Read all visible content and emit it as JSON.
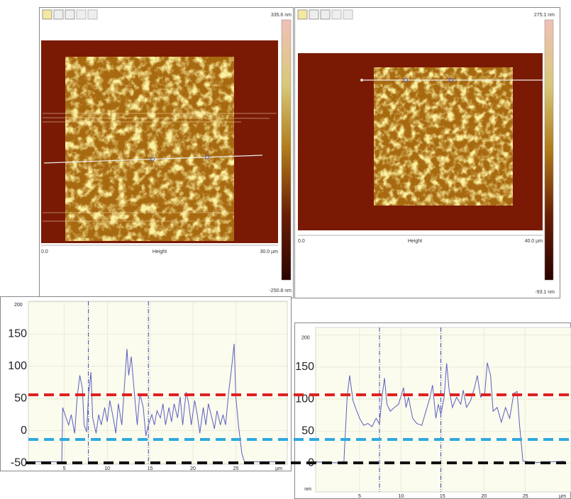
{
  "images": [
    {
      "max_label": "335.6 nm",
      "min_label": "-250.8 nm",
      "x_start": "0.0",
      "x_label": "Height",
      "x_end": "30.0 µm"
    },
    {
      "max_label": "275.1 nm",
      "min_label": "-93.1 nm",
      "x_start": "0.0",
      "x_label": "Height",
      "x_end": "40.0 µm"
    }
  ],
  "chart_data": [
    {
      "type": "line",
      "color": "#5b5fbf",
      "cursor_color": "#3a4ab0",
      "grid": true,
      "xlim": [
        0.8,
        31
      ],
      "xticks": [
        5,
        10,
        15,
        20,
        25
      ],
      "xlabel": "µm",
      "ylim": [
        -52,
        201
      ],
      "yticks": [
        -50,
        0,
        50,
        100,
        150,
        200
      ],
      "cursors": [
        7.8,
        14.8
      ],
      "x": [
        0.8,
        4.7,
        4.8,
        5.2,
        5.5,
        5.8,
        6.2,
        6.5,
        6.8,
        7.1,
        7.3,
        7.6,
        7.8,
        8.1,
        8.3,
        8.7,
        9.0,
        9.3,
        9.7,
        10.0,
        10.3,
        10.7,
        11.0,
        11.3,
        11.7,
        12.0,
        12.3,
        12.5,
        12.8,
        13.2,
        13.5,
        13.8,
        14.2,
        14.5,
        14.8,
        15.2,
        15.5,
        15.8,
        16.2,
        16.5,
        16.8,
        17.2,
        17.5,
        17.8,
        18.2,
        18.5,
        18.8,
        19.2,
        19.5,
        19.8,
        20.2,
        20.5,
        20.8,
        21.2,
        21.5,
        21.8,
        22.2,
        22.5,
        22.8,
        23.2,
        23.5,
        23.8,
        24.2,
        24.5,
        24.8,
        25.0,
        25.3,
        25.7,
        26.0,
        30.8
      ],
      "values": [
        -48,
        -48,
        36,
        20,
        9,
        25,
        -4,
        53,
        86,
        66,
        9,
        -2,
        53,
        91,
        20,
        -4,
        25,
        9,
        36,
        14,
        47,
        20,
        -4,
        42,
        9,
        69,
        127,
        86,
        115,
        53,
        9,
        58,
        36,
        -8,
        9,
        25,
        9,
        31,
        20,
        42,
        9,
        36,
        14,
        42,
        20,
        53,
        9,
        60,
        42,
        9,
        47,
        25,
        -4,
        36,
        9,
        42,
        20,
        3,
        31,
        9,
        25,
        9,
        64,
        97,
        135,
        53,
        9,
        -35,
        -48,
        -48
      ]
    },
    {
      "type": "line",
      "color": "#5b5fbf",
      "cursor_color": "#3a4ab0",
      "grid": true,
      "xlim": [
        -0.3,
        30.5
      ],
      "xticks": [
        5,
        10,
        15,
        20,
        25
      ],
      "xlabel": "µm",
      "ylabel": "nm",
      "ylim": [
        -45,
        212
      ],
      "yticks": [
        0,
        50,
        100,
        150,
        200
      ],
      "cursors": [
        7.4,
        14.8
      ],
      "x": [
        -0.3,
        3.1,
        3.5,
        3.8,
        4.2,
        4.5,
        5.0,
        5.5,
        6.0,
        6.5,
        7.0,
        7.4,
        7.7,
        8.0,
        8.3,
        8.7,
        9.2,
        9.7,
        10.3,
        10.6,
        10.9,
        11.4,
        11.9,
        12.5,
        13.0,
        13.5,
        13.8,
        14.2,
        14.5,
        14.8,
        15.2,
        15.5,
        15.8,
        16.2,
        16.7,
        17.2,
        17.5,
        17.9,
        18.4,
        18.9,
        19.2,
        19.6,
        20.1,
        20.4,
        20.8,
        21.1,
        21.6,
        22.1,
        22.6,
        23.1,
        23.6,
        24.0,
        24.3,
        24.7,
        26.4,
        29.7
      ],
      "values": [
        2,
        0,
        103,
        137,
        98,
        87,
        70,
        59,
        62,
        57,
        70,
        61,
        103,
        133,
        92,
        81,
        87,
        92,
        118,
        87,
        103,
        70,
        62,
        59,
        81,
        103,
        122,
        70,
        92,
        76,
        103,
        156,
        114,
        87,
        103,
        92,
        114,
        87,
        98,
        120,
        137,
        103,
        109,
        157,
        137,
        81,
        87,
        64,
        87,
        70,
        109,
        112,
        59,
        3,
        1,
        3
      ]
    }
  ]
}
